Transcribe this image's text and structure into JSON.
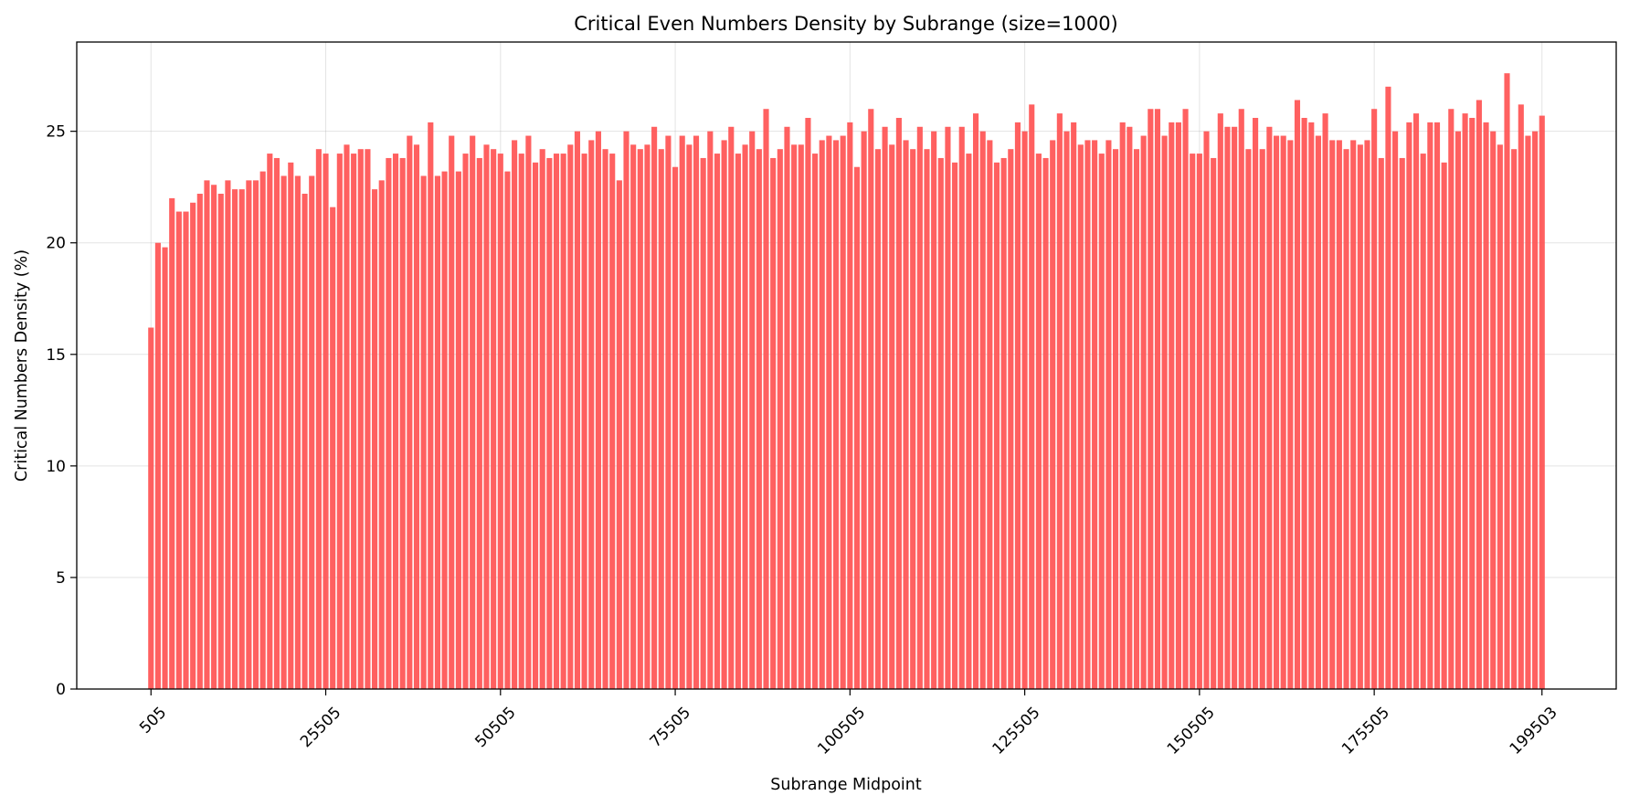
{
  "chart_data": {
    "type": "bar",
    "title": "Critical Even Numbers Density by Subrange (size=1000)",
    "xlabel": "Subrange Midpoint",
    "ylabel": "Critical Numbers Density (%)",
    "xlim": [
      -10116,
      210124
    ],
    "ylim": [
      0,
      29
    ],
    "xticks": [
      505,
      25505,
      50505,
      75505,
      100505,
      125505,
      150505,
      175505,
      199503
    ],
    "yticks": [
      0,
      5,
      10,
      15,
      20,
      25
    ],
    "grid": true,
    "bar_color": "#ff5252",
    "x_start": 505,
    "x_step": 1000,
    "values": [
      16.2,
      20.0,
      19.8,
      22.0,
      21.4,
      21.4,
      21.8,
      22.2,
      22.8,
      22.6,
      22.2,
      22.8,
      22.4,
      22.4,
      22.8,
      22.8,
      23.2,
      24.0,
      23.8,
      23.0,
      23.6,
      23.0,
      22.2,
      23.0,
      24.2,
      24.0,
      21.6,
      24.0,
      24.4,
      24.0,
      24.2,
      24.2,
      22.4,
      22.8,
      23.8,
      24.0,
      23.8,
      24.8,
      24.4,
      23.0,
      25.4,
      23.0,
      23.2,
      24.8,
      23.2,
      24.0,
      24.8,
      23.8,
      24.4,
      24.2,
      24.0,
      23.2,
      24.6,
      24.0,
      24.8,
      23.6,
      24.2,
      23.8,
      24.0,
      24.0,
      24.4,
      25.0,
      24.0,
      24.6,
      25.0,
      24.2,
      24.0,
      22.8,
      25.0,
      24.4,
      24.2,
      24.4,
      25.2,
      24.2,
      24.8,
      23.4,
      24.8,
      24.4,
      24.8,
      23.8,
      25.0,
      24.0,
      24.6,
      25.2,
      24.0,
      24.4,
      25.0,
      24.2,
      26.0,
      23.8,
      24.2,
      25.2,
      24.4,
      24.4,
      25.6,
      24.0,
      24.6,
      24.8,
      24.6,
      24.8,
      25.4,
      23.4,
      25.0,
      26.0,
      24.2,
      25.2,
      24.4,
      25.6,
      24.6,
      24.2,
      25.2,
      24.2,
      25.0,
      23.8,
      25.2,
      23.6,
      25.2,
      24.0,
      25.8,
      25.0,
      24.6,
      23.6,
      23.8,
      24.2,
      25.4,
      25.0,
      26.2,
      24.0,
      23.8,
      24.6,
      25.8,
      25.0,
      25.4,
      24.4,
      24.6,
      24.6,
      24.0,
      24.6,
      24.2,
      25.4,
      25.2,
      24.2,
      24.8,
      26.0,
      26.0,
      24.8,
      25.4,
      25.4,
      26.0,
      24.0,
      24.0,
      25.0,
      23.8,
      25.8,
      25.2,
      25.2,
      26.0,
      24.2,
      25.6,
      24.2,
      25.2,
      24.8,
      24.8,
      24.6,
      26.4,
      25.6,
      25.4,
      24.8,
      25.8,
      24.6,
      24.6,
      24.2,
      24.6,
      24.4,
      24.6,
      26.0,
      23.8,
      27.0,
      25.0,
      23.8,
      25.4,
      25.8,
      24.0,
      25.4,
      25.4,
      23.6,
      26.0,
      25.0,
      25.8,
      25.6,
      26.4,
      25.4,
      25.0,
      24.4,
      27.6,
      24.2,
      26.2,
      24.8,
      25.0,
      25.7
    ]
  }
}
